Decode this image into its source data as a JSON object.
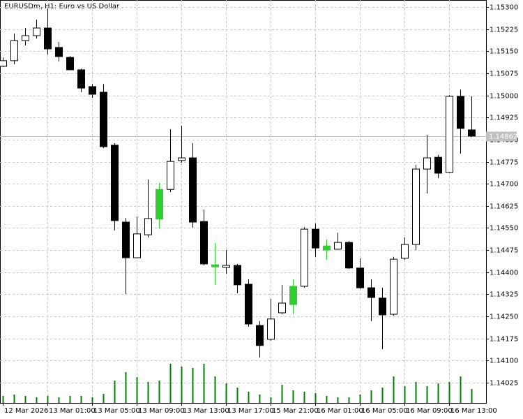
{
  "chart_data": {
    "type": "candlestick",
    "title": "EURUSDm, H1:  Euro vs US Dollar",
    "categories": [
      "12 Mar 2026",
      null,
      null,
      null,
      "13 Mar 01:00",
      null,
      null,
      null,
      "13 Mar 05:00",
      null,
      null,
      null,
      "13 Mar 09:00",
      null,
      null,
      null,
      "13 Mar 13:00",
      null,
      null,
      null,
      "13 Mar 17:00",
      null,
      null,
      null,
      "15 Mar 21:00",
      null,
      null,
      null,
      "16 Mar 01:00",
      null,
      null,
      null,
      "16 Mar 05:00",
      null,
      null,
      null,
      "16 Mar 09:00",
      null,
      null,
      null,
      "16 Mar 13:00",
      null,
      null
    ],
    "open": [
      1.15099,
      1.15118,
      1.15186,
      1.15203,
      1.15229,
      1.15163,
      1.15129,
      1.15087,
      1.1503,
      1.15011,
      1.14831,
      1.1457,
      1.14449,
      1.14527,
      1.1458,
      1.14681,
      1.14779,
      1.14788,
      1.14572,
      1.14418,
      1.14416,
      1.14423,
      1.14359,
      1.14219,
      1.14172,
      1.14262,
      1.1429,
      1.14352,
      1.14546,
      1.14475,
      1.14478,
      1.14501,
      1.14414,
      1.14347,
      1.14312,
      1.14257,
      1.14447,
      1.14494,
      1.1475,
      1.1479,
      1.14738,
      1.14997,
      1.14883
    ],
    "high": [
      1.15129,
      1.1521,
      1.15229,
      1.15257,
      1.15295,
      1.15182,
      1.15134,
      1.15091,
      1.15039,
      1.15039,
      1.14838,
      1.14584,
      1.14589,
      1.14715,
      1.14703,
      1.14885,
      1.14897,
      1.14838,
      1.14613,
      1.14499,
      1.14475,
      1.14428,
      1.14376,
      1.14234,
      1.14309,
      1.14357,
      1.14376,
      1.14553,
      1.14565,
      1.14511,
      1.14534,
      1.14506,
      1.14447,
      1.14376,
      1.14347,
      1.14452,
      1.14518,
      1.14764,
      1.14866,
      1.14798,
      1.15001,
      1.1502,
      1.14997
    ],
    "low": [
      1.15096,
      1.15106,
      1.1517,
      1.15193,
      1.15139,
      1.15115,
      1.15087,
      1.15011,
      1.14992,
      1.14821,
      1.14542,
      1.14326,
      1.14447,
      1.14518,
      1.14549,
      1.14672,
      1.14772,
      1.14551,
      1.14423,
      1.14357,
      1.14395,
      1.14328,
      1.14215,
      1.1411,
      1.14167,
      1.14257,
      1.14257,
      1.14347,
      1.14452,
      1.14442,
      1.14475,
      1.14411,
      1.14343,
      1.14234,
      1.14139,
      1.14252,
      1.14442,
      1.14475,
      1.14667,
      1.14719,
      1.14736,
      1.14802,
      1.14859
    ],
    "close": [
      1.15118,
      1.15186,
      1.15203,
      1.15229,
      1.15158,
      1.15132,
      1.15087,
      1.15025,
      1.15004,
      1.14826,
      1.14575,
      1.14449,
      1.1453,
      1.14582,
      1.14681,
      1.14776,
      1.14788,
      1.1457,
      1.14428,
      1.14425,
      1.14423,
      1.14357,
      1.14224,
      1.14151,
      1.14241,
      1.14295,
      1.14352,
      1.14546,
      1.14482,
      1.14489,
      1.14501,
      1.14414,
      1.14347,
      1.14314,
      1.14255,
      1.14444,
      1.14494,
      1.1475,
      1.14788,
      1.14736,
      1.14997,
      1.14888,
      1.14862
    ],
    "colors": [
      "#ffffff",
      "#ffffff",
      "#ffffff",
      "#ffffff",
      "#000000",
      "#000000",
      "#000000",
      "#000000",
      "#000000",
      "#000000",
      "#000000",
      "#000000",
      "#ffffff",
      "#ffffff",
      "#32cd32",
      "#ffffff",
      "#ffffff",
      "#000000",
      "#000000",
      "#32cd32",
      "#ffffff",
      "#000000",
      "#000000",
      "#000000",
      "#ffffff",
      "#ffffff",
      "#32cd32",
      "#ffffff",
      "#000000",
      "#32cd32",
      "#ffffff",
      "#000000",
      "#000000",
      "#000000",
      "#000000",
      "#ffffff",
      "#ffffff",
      "#ffffff",
      "#ffffff",
      "#000000",
      "#ffffff",
      "#000000",
      "#000000"
    ],
    "volumes": [
      10,
      12,
      10,
      8,
      10,
      8,
      10,
      10,
      8,
      13,
      32,
      44,
      37,
      30,
      32,
      56,
      52,
      50,
      56,
      38,
      28,
      22,
      16,
      12,
      8,
      26,
      18,
      16,
      14,
      10,
      8,
      8,
      12,
      18,
      22,
      38,
      24,
      30,
      24,
      28,
      30,
      38,
      20
    ],
    "volume_color": "#008000",
    "ylim": [
      1.13956,
      1.15324
    ],
    "yticks": [
      {
        "value": 1.153,
        "label": "1.15300"
      },
      1.15225,
      {
        "value": 1.1515,
        "label": "1.15150"
      },
      1.15075,
      {
        "value": 1.15,
        "label": "1.15000"
      },
      1.14925,
      {
        "value": 1.1485,
        "label": "1.14850"
      },
      1.14775,
      {
        "value": 1.147,
        "label": "1.14700"
      },
      1.14625,
      {
        "value": 1.1455,
        "label": "1.14550"
      },
      1.14475,
      {
        "value": 1.144,
        "label": "1.14400"
      },
      1.14325,
      {
        "value": 1.1425,
        "label": "1.14250"
      },
      1.14175,
      {
        "value": 1.141,
        "label": "1.14100"
      },
      1.14025
    ],
    "grid": true
  }
}
